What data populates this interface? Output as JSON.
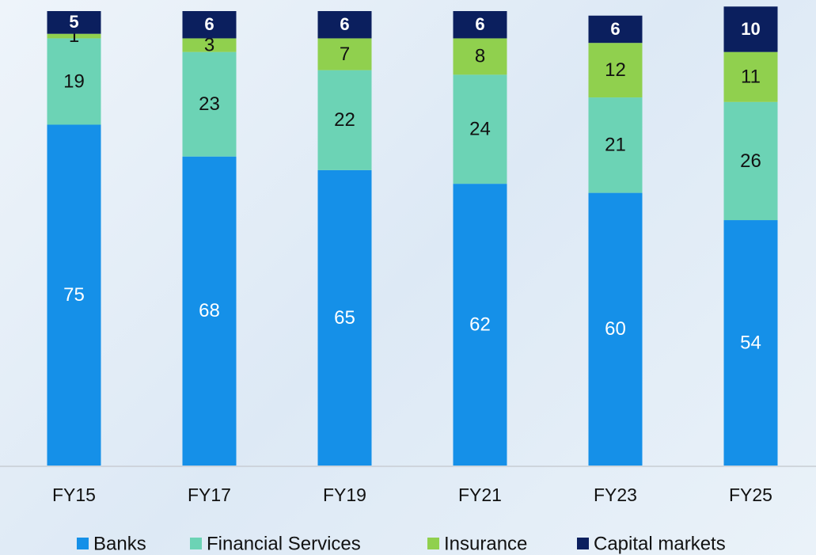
{
  "chart_data": {
    "type": "stacked_bar",
    "categories": [
      "FY15",
      "FY17",
      "FY19",
      "FY21",
      "FY23",
      "FY25"
    ],
    "series": [
      {
        "name": "Banks",
        "color": "#1590e8",
        "values": [
          75,
          68,
          65,
          62,
          60,
          54
        ]
      },
      {
        "name": "Financial Services",
        "color": "#6cd3b5",
        "values": [
          19,
          23,
          22,
          24,
          21,
          26
        ]
      },
      {
        "name": "Insurance",
        "color": "#90d04e",
        "values": [
          1,
          3,
          7,
          8,
          12,
          11
        ]
      },
      {
        "name": "Capital markets",
        "color": "#0b1f5e",
        "values": [
          5,
          6,
          6,
          6,
          6,
          10
        ]
      }
    ],
    "ylim": [
      0,
      100
    ],
    "legend": "bottom"
  }
}
